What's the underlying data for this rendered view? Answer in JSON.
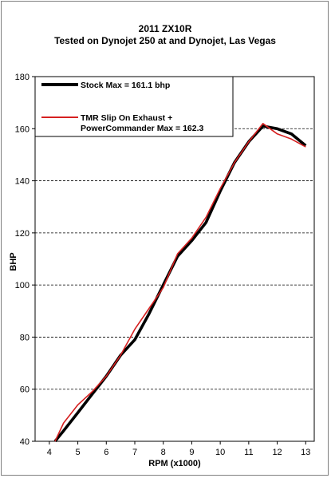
{
  "chart_data": {
    "type": "line",
    "title_line1": "2011 ZX10R",
    "title_line2": "Tested on Dynojet  250 at and Dynojet, Las Vegas",
    "xlabel": "RPM (x1000)",
    "ylabel": "BHP",
    "xlim": [
      3.5,
      13.3
    ],
    "ylim": [
      40,
      180
    ],
    "x_ticks": [
      4,
      5,
      6,
      7,
      8,
      9,
      10,
      11,
      12,
      13
    ],
    "y_ticks": [
      40,
      60,
      80,
      100,
      120,
      140,
      160,
      180
    ],
    "grid": true,
    "legend_position": "top-left",
    "series": [
      {
        "name": "Stock Max = 161.1 bhp",
        "color": "#000000",
        "x": [
          4.2,
          4.5,
          5.0,
          5.5,
          6.0,
          6.5,
          7.0,
          7.5,
          8.0,
          8.5,
          9.0,
          9.5,
          10.0,
          10.5,
          11.0,
          11.5,
          12.0,
          12.5,
          13.0
        ],
        "values": [
          40,
          44,
          51,
          58,
          65,
          73,
          79,
          89,
          100,
          111,
          117,
          124,
          136,
          147,
          155,
          161,
          160,
          158,
          153.5
        ]
      },
      {
        "name_line1": "TMR Slip On Exhaust +",
        "name_line2": "PowerCommander Max = 162.3",
        "color": "#d62020",
        "x": [
          4.2,
          4.5,
          5.0,
          5.5,
          6.0,
          6.5,
          7.0,
          7.5,
          8.0,
          8.5,
          9.0,
          9.5,
          10.0,
          10.5,
          11.0,
          11.5,
          12.0,
          12.5,
          13.0
        ],
        "values": [
          40,
          47,
          54,
          59,
          65,
          73,
          83,
          91,
          99,
          112,
          118,
          126,
          137,
          147,
          155,
          162,
          158,
          156,
          153
        ]
      }
    ]
  }
}
